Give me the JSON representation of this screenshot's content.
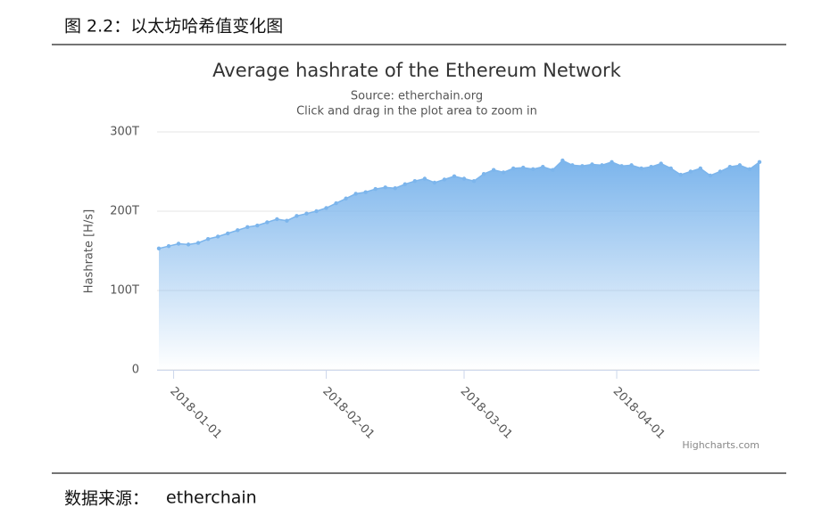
{
  "header": {
    "title": "图 2.2：以太坊哈希值变化图"
  },
  "footer": {
    "label": "数据来源：",
    "value": "etherchain"
  },
  "chart_data": {
    "type": "area",
    "title": "Average hashrate of the Ethereum Network",
    "subtitle": "Source: etherchain.org",
    "note": "Click and drag in the plot area to zoom in",
    "y_label": "Hashrate [H/s]",
    "credits": "Highcharts.com",
    "color": "#7cb5ec",
    "grid": true,
    "x": [
      "2017-12-29",
      "2017-12-31",
      "2018-01-02",
      "2018-01-04",
      "2018-01-06",
      "2018-01-08",
      "2018-01-10",
      "2018-01-12",
      "2018-01-14",
      "2018-01-16",
      "2018-01-18",
      "2018-01-20",
      "2018-01-22",
      "2018-01-24",
      "2018-01-26",
      "2018-01-28",
      "2018-01-30",
      "2018-02-01",
      "2018-02-03",
      "2018-02-05",
      "2018-02-07",
      "2018-02-09",
      "2018-02-11",
      "2018-02-13",
      "2018-02-15",
      "2018-02-17",
      "2018-02-19",
      "2018-02-21",
      "2018-02-23",
      "2018-02-25",
      "2018-02-27",
      "2018-03-01",
      "2018-03-03",
      "2018-03-05",
      "2018-03-07",
      "2018-03-09",
      "2018-03-11",
      "2018-03-13",
      "2018-03-15",
      "2018-03-17",
      "2018-03-19",
      "2018-03-21",
      "2018-03-23",
      "2018-03-25",
      "2018-03-27",
      "2018-03-29",
      "2018-03-31",
      "2018-04-02",
      "2018-04-04",
      "2018-04-06",
      "2018-04-08",
      "2018-04-10",
      "2018-04-12",
      "2018-04-14",
      "2018-04-16",
      "2018-04-18",
      "2018-04-20",
      "2018-04-22",
      "2018-04-24",
      "2018-04-26",
      "2018-04-28",
      "2018-04-30"
    ],
    "values": [
      153,
      156,
      159,
      158,
      160,
      165,
      168,
      172,
      176,
      180,
      182,
      186,
      190,
      188,
      194,
      197,
      200,
      204,
      210,
      216,
      222,
      224,
      228,
      230,
      229,
      234,
      238,
      241,
      236,
      240,
      244,
      241,
      238,
      247,
      252,
      249,
      254,
      255,
      253,
      256,
      252,
      264,
      258,
      257,
      259,
      258,
      262,
      257,
      258,
      254,
      256,
      260,
      254,
      246,
      250,
      254,
      245,
      250,
      256,
      258,
      253,
      262
    ],
    "xlim": [
      "2017-12-29",
      "2018-04-30"
    ],
    "xticks": [
      "2018-01-01",
      "2018-02-01",
      "2018-03-01",
      "2018-04-01"
    ],
    "ylim": [
      0,
      300
    ],
    "yticks": [
      0,
      {
        "value": 100,
        "label": "100T"
      },
      {
        "value": 200,
        "label": "200T"
      },
      {
        "value": 300,
        "label": "300T"
      }
    ]
  }
}
